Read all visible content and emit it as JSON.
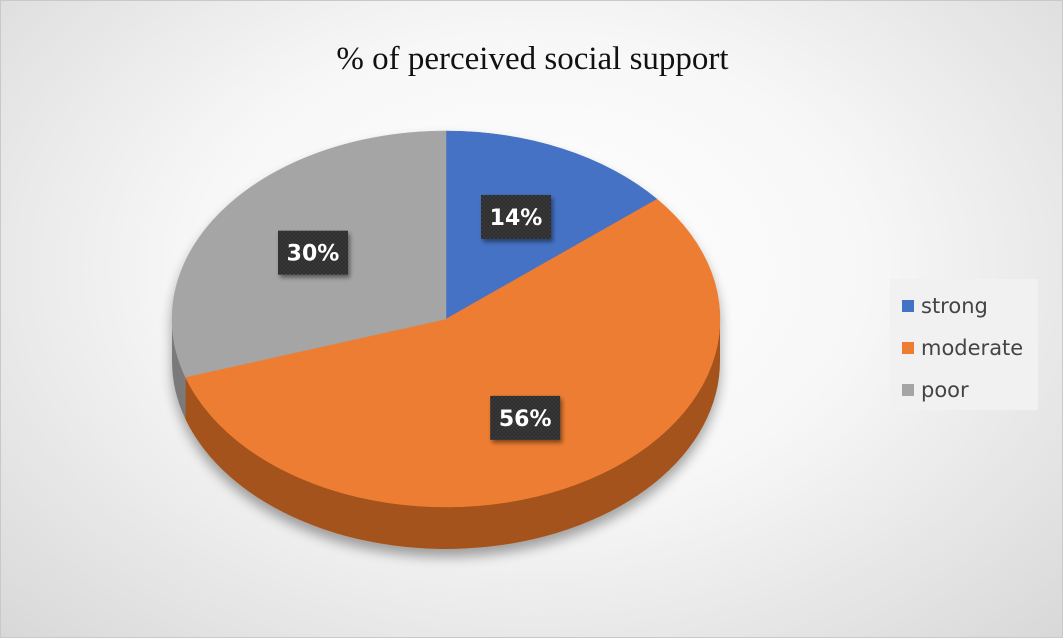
{
  "chart_data": {
    "type": "pie",
    "title": "% of perceived social support",
    "slices": [
      {
        "label": "strong",
        "value": 14,
        "data_label": "14%",
        "color": "#4472C4",
        "side_color": "#2F5597"
      },
      {
        "label": "moderate",
        "value": 56,
        "data_label": "56%",
        "color": "#ED7D31",
        "side_color": "#A4521A"
      },
      {
        "label": "poor",
        "value": 30,
        "data_label": "30%",
        "color": "#A5A5A5",
        "side_color": "#7A7A7A"
      }
    ],
    "legend_position": "right",
    "three_d": true
  }
}
